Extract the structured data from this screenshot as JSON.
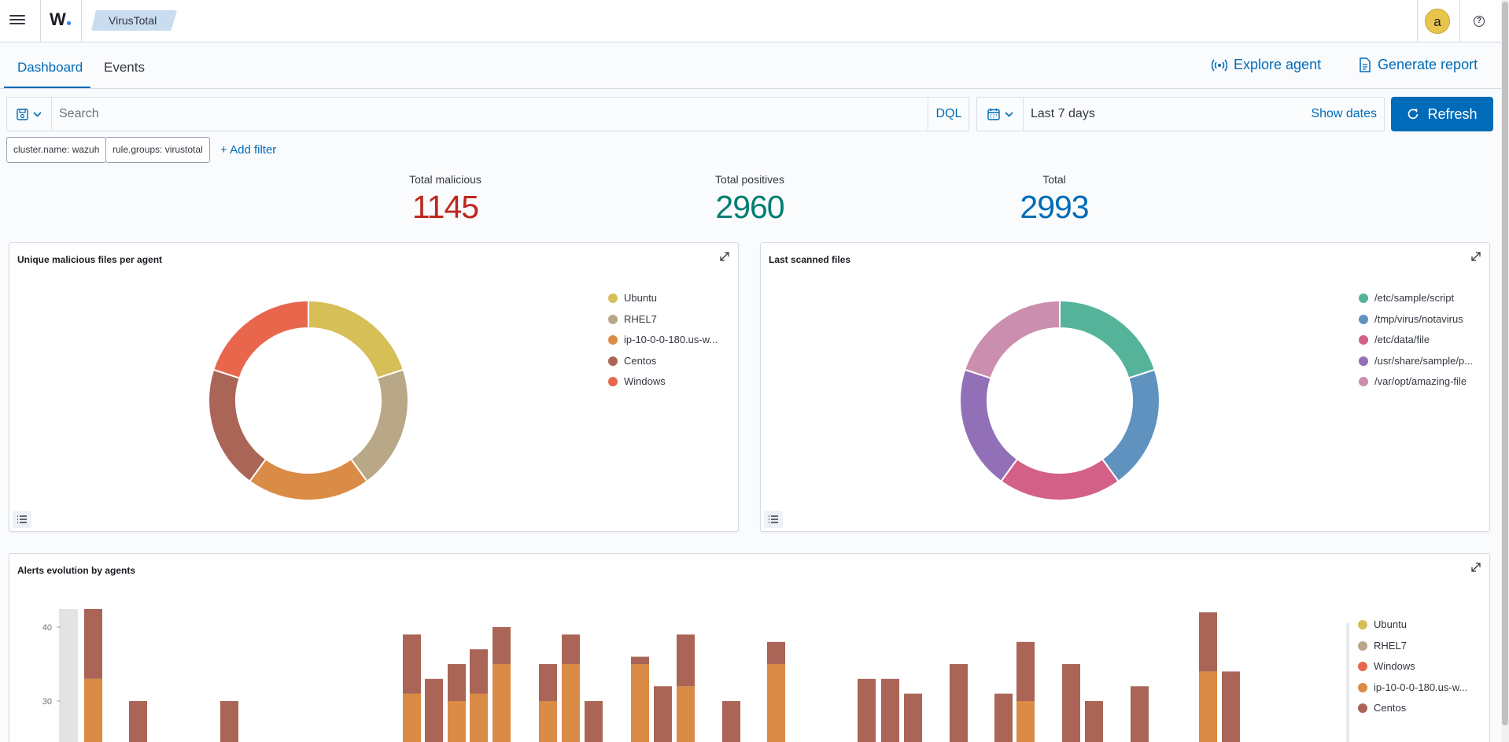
{
  "header": {
    "logo_text": "W",
    "breadcrumb": "VirusTotal",
    "avatar_initial": "a",
    "help_glyph": "?"
  },
  "tabs": [
    {
      "label": "Dashboard",
      "active": true
    },
    {
      "label": "Events",
      "active": false
    }
  ],
  "actions": {
    "explore_agent": "Explore agent",
    "generate_report": "Generate report"
  },
  "query": {
    "placeholder": "Search",
    "value": "",
    "language": "DQL"
  },
  "datepicker": {
    "range": "Last 7 days",
    "show_dates": "Show dates",
    "refresh": "Refresh"
  },
  "filters": [
    "cluster.name: wazuh",
    "rule.groups: virustotal"
  ],
  "add_filter": "+ Add filter",
  "metrics": [
    {
      "label": "Total malicious",
      "value": "1145",
      "color": "#bd271e"
    },
    {
      "label": "Total positives",
      "value": "2960",
      "color": "#017d73"
    },
    {
      "label": "Total",
      "value": "2993",
      "color": "#006bb8"
    }
  ],
  "panels": {
    "agents": {
      "title": "Unique malicious files per agent",
      "chart_data": {
        "type": "pie",
        "donut": true,
        "labels": [
          "Ubuntu",
          "RHEL7",
          "ip-10-0-0-180.us-w...",
          "Centos",
          "Windows"
        ],
        "values": [
          20,
          20,
          20,
          20,
          20
        ],
        "colors": [
          "#d6bf57",
          "#b9a888",
          "#da8b45",
          "#aa6556",
          "#e7664c"
        ],
        "legend": "right"
      }
    },
    "files": {
      "title": "Last scanned files",
      "chart_data": {
        "type": "pie",
        "donut": true,
        "labels": [
          "/etc/sample/script",
          "/tmp/virus/notavirus",
          "/etc/data/file",
          "/usr/share/sample/p...",
          "/var/opt/amazing-file"
        ],
        "values": [
          20,
          20,
          20,
          20,
          20
        ],
        "colors": [
          "#54b399",
          "#6092c0",
          "#d36086",
          "#9170b8",
          "#ca8eae"
        ],
        "legend": "right"
      }
    },
    "evolution": {
      "title": "Alerts evolution by agents",
      "chart_data": {
        "type": "bar",
        "stacked": true,
        "y_ticks": [
          30,
          40
        ],
        "series_names": [
          "Ubuntu",
          "RHEL7",
          "Windows",
          "ip-10-0-0-180.us-w...",
          "Centos"
        ],
        "colors": [
          "#d6bf57",
          "#b9a888",
          "#e7664c",
          "#da8b45",
          "#aa6556"
        ],
        "legend": "right",
        "bars": [
          {
            "ip": 33,
            "centos": 11
          },
          {
            "ip": 0,
            "centos": 30
          },
          {
            "ip": 0,
            "centos": 30
          },
          {
            "ip": 31,
            "centos": 8
          },
          {
            "ip": 0,
            "centos": 33
          },
          {
            "ip": 30,
            "centos": 5
          },
          {
            "ip": 31,
            "centos": 6
          },
          {
            "ip": 35,
            "centos": 5
          },
          {
            "ip": 30,
            "centos": 5
          },
          {
            "ip": 35,
            "centos": 4
          },
          {
            "ip": 0,
            "centos": 30
          },
          {
            "ip": 35,
            "centos": 1
          },
          {
            "ip": 0,
            "centos": 32
          },
          {
            "ip": 32,
            "centos": 7
          },
          {
            "ip": 0,
            "centos": 30
          },
          {
            "ip": 35,
            "centos": 3
          },
          {
            "ip": 0,
            "centos": 33
          },
          {
            "ip": 0,
            "centos": 33
          },
          {
            "ip": 0,
            "centos": 31
          },
          {
            "ip": 0,
            "centos": 35
          },
          {
            "ip": 0,
            "centos": 31
          },
          {
            "ip": 30,
            "centos": 8
          },
          {
            "ip": 0,
            "centos": 35
          },
          {
            "ip": 0,
            "centos": 30
          },
          {
            "ip": 0,
            "centos": 32
          },
          {
            "ip": 34,
            "centos": 8
          },
          {
            "ip": 0,
            "centos": 34
          }
        ]
      }
    }
  }
}
